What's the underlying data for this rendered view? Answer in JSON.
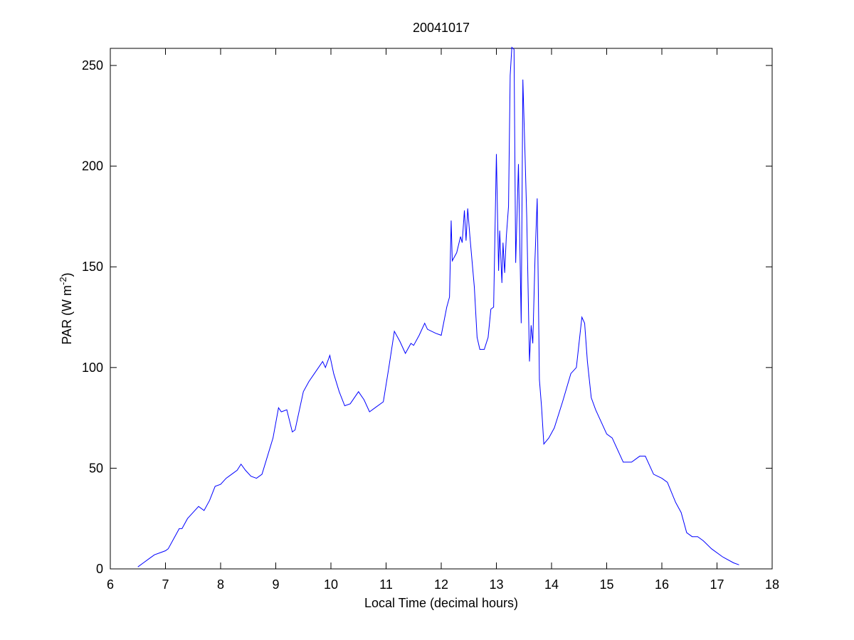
{
  "chart_data": {
    "type": "line",
    "title": "20041017",
    "x_label": "Local Time (decimal hours)",
    "y_label_parts": [
      "PAR (W m",
      "-2",
      ")"
    ],
    "xlim": [
      6,
      18
    ],
    "xticks": [
      6,
      7,
      8,
      9,
      10,
      11,
      12,
      13,
      14,
      15,
      16,
      17,
      18
    ],
    "ylim": [
      0,
      258.5
    ],
    "yticks": [
      0,
      50,
      100,
      150,
      200,
      250
    ],
    "series": [
      {
        "color": "#0000ff",
        "x": [
          6.5,
          6.6,
          6.7,
          6.8,
          6.9,
          7.0,
          7.05,
          7.15,
          7.25,
          7.3,
          7.4,
          7.5,
          7.6,
          7.7,
          7.8,
          7.9,
          8.0,
          8.1,
          8.2,
          8.3,
          8.37,
          8.45,
          8.55,
          8.65,
          8.75,
          8.85,
          8.95,
          9.05,
          9.1,
          9.2,
          9.3,
          9.35,
          9.5,
          9.6,
          9.7,
          9.85,
          9.9,
          9.98,
          10.05,
          10.15,
          10.25,
          10.35,
          10.5,
          10.6,
          10.7,
          10.8,
          10.95,
          11.05,
          11.15,
          11.25,
          11.35,
          11.45,
          11.5,
          11.6,
          11.7,
          11.75,
          11.9,
          12.0,
          12.1,
          12.15,
          12.18,
          12.2,
          12.28,
          12.35,
          12.38,
          12.42,
          12.45,
          12.48,
          12.52,
          12.6,
          12.65,
          12.7,
          12.78,
          12.85,
          12.9,
          12.95,
          13.0,
          13.04,
          13.06,
          13.1,
          13.12,
          13.15,
          13.18,
          13.22,
          13.25,
          13.28,
          13.32,
          13.35,
          13.4,
          13.45,
          13.48,
          13.52,
          13.55,
          13.6,
          13.63,
          13.66,
          13.7,
          13.74,
          13.78,
          13.82,
          13.86,
          13.95,
          14.05,
          14.2,
          14.35,
          14.45,
          14.55,
          14.6,
          14.65,
          14.72,
          14.8,
          14.9,
          15.0,
          15.1,
          15.25,
          15.3,
          15.45,
          15.6,
          15.7,
          15.85,
          16.0,
          16.1,
          16.25,
          16.35,
          16.45,
          16.55,
          16.65,
          16.75,
          16.9,
          17.1,
          17.3,
          17.4
        ],
        "values": [
          1,
          3,
          5,
          7,
          8,
          9,
          10,
          15,
          20,
          20,
          25,
          28,
          31,
          29,
          34,
          41,
          42,
          45,
          47,
          49,
          52,
          49,
          46,
          45,
          47,
          56,
          65,
          80,
          78,
          79,
          68,
          69,
          88,
          93,
          97,
          103,
          100,
          106,
          97,
          88,
          81,
          82,
          88,
          84,
          78,
          80,
          83,
          100,
          118,
          113,
          107,
          112,
          111,
          116,
          122,
          119,
          117,
          116,
          130,
          135,
          173,
          153,
          157,
          165,
          162,
          178,
          163,
          179,
          165,
          140,
          115,
          109,
          109,
          115,
          129,
          130,
          206,
          148,
          168,
          142,
          162,
          147,
          165,
          180,
          245,
          259,
          258,
          152,
          201,
          122,
          243,
          205,
          175,
          103,
          121,
          112,
          154,
          184,
          94,
          80,
          62,
          65,
          70,
          83,
          97,
          100,
          125,
          122,
          103,
          85,
          79,
          73,
          67,
          65,
          56,
          53,
          53,
          56,
          56,
          47,
          45,
          43,
          33,
          28,
          18,
          16,
          16,
          14,
          10,
          6,
          3,
          2
        ]
      }
    ]
  }
}
